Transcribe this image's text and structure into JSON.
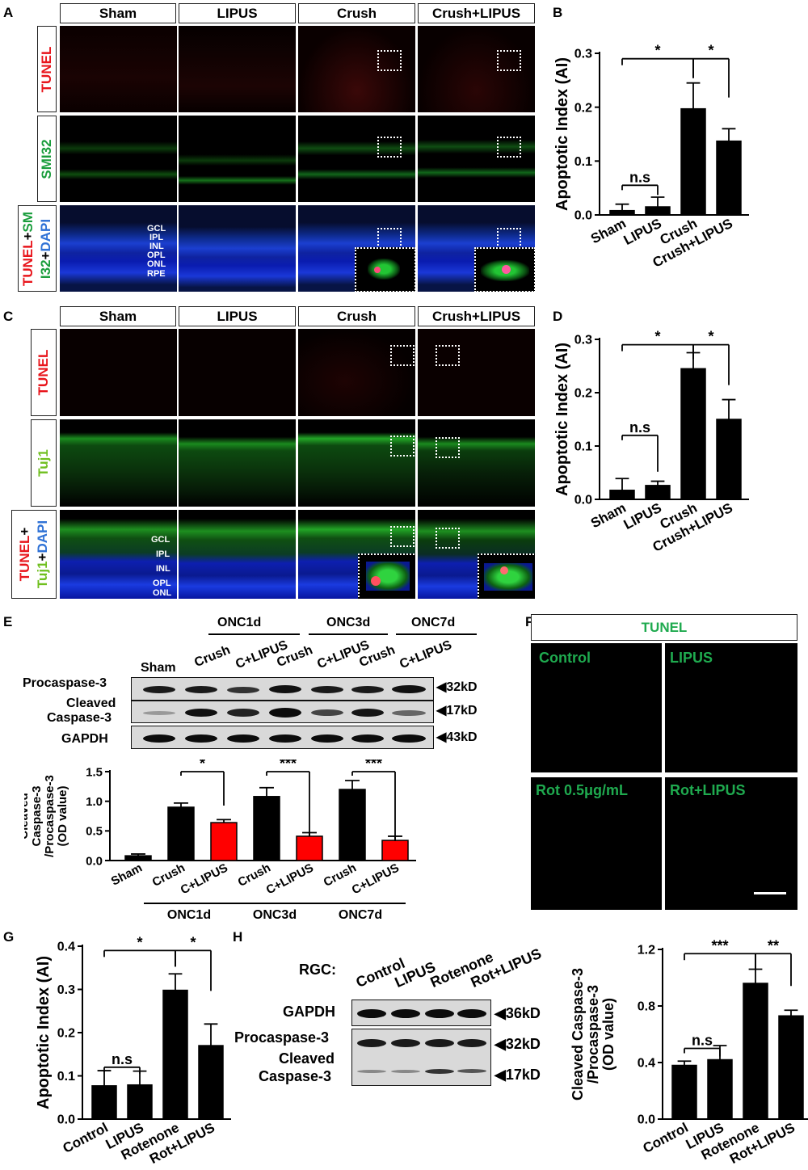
{
  "panel_labels": {
    "a": "A",
    "b": "B",
    "c": "C",
    "d": "D",
    "e": "E",
    "f": "F",
    "g": "G",
    "h": "H"
  },
  "panelA": {
    "columns": [
      "Sham",
      "LIPUS",
      "Crush",
      "Crush+LIPUS"
    ],
    "rows": {
      "tunel": "TUNEL",
      "smi32": "SMI32",
      "merge_a": "TUNEL",
      "merge_plus1": "+",
      "merge_b": "SM",
      "merge_c": "I32",
      "merge_plus2": "+",
      "merge_d": "DAPI"
    },
    "layers": [
      "GCL",
      "IPL",
      "INL",
      "OPL",
      "ONL",
      "RPE"
    ]
  },
  "panelC": {
    "columns": [
      "Sham",
      "LIPUS",
      "Crush",
      "Crush+LIPUS"
    ],
    "rows": {
      "tunel": "TUNEL",
      "tuj1": "Tuj1",
      "merge_a": "TUNEL",
      "merge_plus1": "+",
      "merge_b": "Tuj1",
      "merge_plus2": "+",
      "merge_c": "DAPI"
    },
    "layers": [
      "GCL",
      "IPL",
      "INL",
      "OPL",
      "ONL"
    ]
  },
  "panelE": {
    "groups": [
      "ONC1d",
      "ONC3d",
      "ONC7d"
    ],
    "lanes": [
      "Sham",
      "Crush",
      "C+LIPUS",
      "Crush",
      "C+LIPUS",
      "Crush",
      "C+LIPUS"
    ],
    "proteins": [
      "Procaspase-3",
      "Cleaved",
      "Caspase-3",
      "GAPDH"
    ],
    "sizes": [
      "32kD",
      "17kD",
      "43kD"
    ]
  },
  "panelF": {
    "header": "TUNEL",
    "labels": [
      "Control",
      "LIPUS",
      "Rot 0.5μg/mL",
      "Rot+LIPUS"
    ]
  },
  "panelH": {
    "rgc_label": "RGC:",
    "lanes": [
      "Control",
      "LIPUS",
      "Rotenone",
      "Rot+LIPUS"
    ],
    "proteins": [
      "GAPDH",
      "Procaspase-3",
      "Cleaved",
      "Caspase-3"
    ],
    "sizes": [
      "36kD",
      "32kD",
      "17kD"
    ]
  },
  "chart_data": [
    {
      "id": "B",
      "type": "bar",
      "categories": [
        "Sham",
        "LIPUS",
        "Crush",
        "Crush+LIPUS"
      ],
      "values": [
        0.008,
        0.015,
        0.197,
        0.137
      ],
      "errors": [
        0.012,
        0.018,
        0.048,
        0.023
      ],
      "ylabel": "Apoptotic Index (AI)",
      "ylim": [
        0,
        0.3
      ],
      "yticks": [
        "0.0",
        "0.1",
        "0.2",
        "0.3"
      ],
      "significance": [
        "*",
        "*",
        "n.s"
      ],
      "bar_color": "#000000"
    },
    {
      "id": "D",
      "type": "bar",
      "categories": [
        "Sham",
        "LIPUS",
        "Crush",
        "Crush+LIPUS"
      ],
      "values": [
        0.017,
        0.026,
        0.245,
        0.15
      ],
      "errors": [
        0.022,
        0.008,
        0.03,
        0.037
      ],
      "ylabel": "Apoptotic Index (AI)",
      "ylim": [
        0,
        0.3
      ],
      "yticks": [
        "0.0",
        "0.1",
        "0.2",
        "0.3"
      ],
      "significance": [
        "*",
        "*",
        "n.s"
      ],
      "bar_color": "#000000"
    },
    {
      "id": "E",
      "type": "bar",
      "categories": [
        "Sham",
        "Crush",
        "C+LIPUS",
        "Crush",
        "C+LIPUS",
        "Crush",
        "C+LIPUS"
      ],
      "groups": [
        "ONC1d",
        "ONC3d",
        "ONC7d"
      ],
      "values": [
        0.08,
        0.9,
        0.64,
        1.08,
        0.41,
        1.2,
        0.34
      ],
      "errors": [
        0.03,
        0.07,
        0.05,
        0.15,
        0.06,
        0.15,
        0.07
      ],
      "colors": [
        "#000000",
        "#000000",
        "#ff0000",
        "#000000",
        "#ff0000",
        "#000000",
        "#ff0000"
      ],
      "ylabel_lines": [
        "Cleaved",
        "Caspase-3",
        "/Procaspase-3",
        "(OD value)"
      ],
      "ylim": [
        0,
        1.5
      ],
      "yticks": [
        "0.0",
        "0.5",
        "1.0",
        "1.5"
      ],
      "significance": [
        "*",
        "***",
        "***"
      ]
    },
    {
      "id": "G",
      "type": "bar",
      "categories": [
        "Control",
        "LIPUS",
        "Rotenone",
        "Rot+LIPUS"
      ],
      "values": [
        0.077,
        0.079,
        0.298,
        0.17
      ],
      "errors": [
        0.035,
        0.032,
        0.038,
        0.05
      ],
      "ylabel": "Apoptotic Index (AI)",
      "ylim": [
        0,
        0.4
      ],
      "yticks": [
        "0.0",
        "0.1",
        "0.2",
        "0.3",
        "0.4"
      ],
      "significance": [
        "*",
        "*",
        "n.s"
      ],
      "bar_color": "#000000"
    },
    {
      "id": "H",
      "type": "bar",
      "categories": [
        "Control",
        "LIPUS",
        "Rotenone",
        "Rot+LIPUS"
      ],
      "values": [
        0.38,
        0.42,
        0.96,
        0.73
      ],
      "errors": [
        0.03,
        0.1,
        0.1,
        0.04
      ],
      "ylabel_lines": [
        "Cleaved Caspase-3",
        "/Procaspase-3",
        "(OD value)"
      ],
      "ylim": [
        0,
        1.2
      ],
      "yticks": [
        "0.0",
        "0.4",
        "0.8",
        "1.2"
      ],
      "significance": [
        "***",
        "**",
        "n.s"
      ],
      "bar_color": "#000000"
    }
  ]
}
